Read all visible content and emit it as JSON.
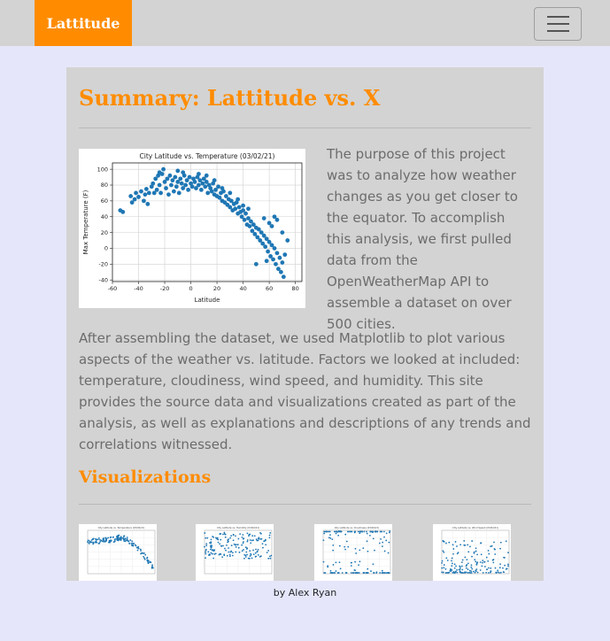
{
  "navbar": {
    "brand": "Lattitude",
    "toggler_icon": "hamburger-icon"
  },
  "summary": {
    "title": "Summary: Lattitude vs. X",
    "intro": "The purpose of this project was to analyze how weather changes as you get closer to the equator. To accomplish this analysis, we first pulled data from the OpenWeatherMap API to assemble a dataset on over 500 cities.",
    "body": "After assembling the dataset, we used Matplotlib to plot various aspects of the weather vs. latitude. Factors we looked at included: temperature, cloudiness, wind speed, and humidity. This site provides the source data and visualizations created as part of the analysis, as well as explanations and descriptions of any trends and correlations witnessed."
  },
  "visualizations": {
    "title": "Visualizations"
  },
  "footer": {
    "text": "by Alex Ryan"
  },
  "colors": {
    "brand": "#ff8c00",
    "navbar_bg": "#d3d3d3",
    "page_bg": "#e6e6fa",
    "card_bg": "#d3d3d3",
    "point": "#1f77b4"
  },
  "chart_data": {
    "type": "scatter",
    "title": "City Latitude vs. Temperature (03/02/21)",
    "xlabel": "Latitude",
    "ylabel": "Max Temperature (F)",
    "xlim": [
      -60,
      85
    ],
    "ylim": [
      -42,
      108
    ],
    "xticks": [
      -60,
      -40,
      -20,
      0,
      20,
      40,
      60,
      80
    ],
    "yticks": [
      -40,
      -20,
      0,
      20,
      40,
      60,
      80,
      100
    ],
    "grid": true,
    "points": [
      [
        -54,
        48
      ],
      [
        -52,
        46
      ],
      [
        -46,
        66
      ],
      [
        -45,
        58
      ],
      [
        -43,
        62
      ],
      [
        -42,
        70
      ],
      [
        -40,
        65
      ],
      [
        -38,
        72
      ],
      [
        -36,
        60
      ],
      [
        -35,
        68
      ],
      [
        -34,
        75
      ],
      [
        -33,
        56
      ],
      [
        -32,
        70
      ],
      [
        -30,
        78
      ],
      [
        -29,
        82
      ],
      [
        -28,
        70
      ],
      [
        -27,
        88
      ],
      [
        -26,
        74
      ],
      [
        -25,
        92
      ],
      [
        -24,
        80
      ],
      [
        -23,
        70
      ],
      [
        -22,
        94
      ],
      [
        -21,
        100
      ],
      [
        -20,
        84
      ],
      [
        -19,
        76
      ],
      [
        -18,
        88
      ],
      [
        -17,
        68
      ],
      [
        -16,
        92
      ],
      [
        -15,
        80
      ],
      [
        -14,
        86
      ],
      [
        -13,
        72
      ],
      [
        -12,
        90
      ],
      [
        -11,
        78
      ],
      [
        -10,
        84
      ],
      [
        -9,
        70
      ],
      [
        -8,
        88
      ],
      [
        -7,
        82
      ],
      [
        -6,
        76
      ],
      [
        -5,
        92
      ],
      [
        -4,
        80
      ],
      [
        -3,
        86
      ],
      [
        -2,
        74
      ],
      [
        -1,
        90
      ],
      [
        0,
        82
      ],
      [
        1,
        78
      ],
      [
        2,
        88
      ],
      [
        3,
        84
      ],
      [
        4,
        76
      ],
      [
        5,
        90
      ],
      [
        6,
        80
      ],
      [
        7,
        86
      ],
      [
        8,
        74
      ],
      [
        9,
        82
      ],
      [
        10,
        88
      ],
      [
        11,
        78
      ],
      [
        12,
        84
      ],
      [
        13,
        70
      ],
      [
        14,
        80
      ],
      [
        15,
        76
      ],
      [
        16,
        72
      ],
      [
        17,
        82
      ],
      [
        18,
        68
      ],
      [
        19,
        74
      ],
      [
        20,
        66
      ],
      [
        21,
        78
      ],
      [
        22,
        64
      ],
      [
        23,
        70
      ],
      [
        24,
        60
      ],
      [
        25,
        72
      ],
      [
        26,
        58
      ],
      [
        27,
        66
      ],
      [
        28,
        55
      ],
      [
        29,
        62
      ],
      [
        30,
        52
      ],
      [
        31,
        60
      ],
      [
        32,
        48
      ],
      [
        33,
        56
      ],
      [
        34,
        50
      ],
      [
        35,
        58
      ],
      [
        36,
        44
      ],
      [
        37,
        52
      ],
      [
        38,
        46
      ],
      [
        39,
        40
      ],
      [
        40,
        48
      ],
      [
        41,
        36
      ],
      [
        42,
        44
      ],
      [
        43,
        30
      ],
      [
        44,
        38
      ],
      [
        45,
        28
      ],
      [
        46,
        34
      ],
      [
        47,
        22
      ],
      [
        48,
        30
      ],
      [
        49,
        18
      ],
      [
        50,
        26
      ],
      [
        51,
        14
      ],
      [
        52,
        24
      ],
      [
        53,
        10
      ],
      [
        54,
        20
      ],
      [
        55,
        6
      ],
      [
        56,
        16
      ],
      [
        57,
        2
      ],
      [
        58,
        12
      ],
      [
        59,
        -4
      ],
      [
        60,
        8
      ],
      [
        61,
        -10
      ],
      [
        62,
        4
      ],
      [
        63,
        -14
      ],
      [
        64,
        0
      ],
      [
        65,
        -20
      ],
      [
        66,
        -6
      ],
      [
        67,
        -26
      ],
      [
        68,
        -12
      ],
      [
        69,
        -30
      ],
      [
        70,
        -18
      ],
      [
        71,
        -36
      ],
      [
        72,
        -8
      ],
      [
        50,
        -20
      ],
      [
        58,
        -16
      ],
      [
        62,
        28
      ],
      [
        66,
        36
      ],
      [
        70,
        20
      ],
      [
        74,
        10
      ],
      [
        64,
        40
      ],
      [
        60,
        32
      ],
      [
        56,
        38
      ],
      [
        44,
        50
      ],
      [
        40,
        54
      ],
      [
        36,
        62
      ],
      [
        30,
        70
      ],
      [
        24,
        76
      ],
      [
        18,
        86
      ],
      [
        12,
        92
      ],
      [
        6,
        94
      ],
      [
        -6,
        96
      ],
      [
        -10,
        98
      ],
      [
        -24,
        96
      ]
    ]
  },
  "thumbnails": [
    {
      "name": "latitude-vs-temperature-thumbnail",
      "title": "City Latitude vs. Temperature (03/02/21)",
      "kind": "temperature"
    },
    {
      "name": "latitude-vs-humidity-thumbnail",
      "title": "City Latitude vs. Humidity (03/02/21)",
      "kind": "humidity"
    },
    {
      "name": "latitude-vs-cloudiness-thumbnail",
      "title": "City Latitude vs. Cloudiness (03/02/21)",
      "kind": "cloudiness"
    },
    {
      "name": "latitude-vs-wind-speed-thumbnail",
      "title": "City Latitude vs. Wind Speed (03/02/21)",
      "kind": "wind"
    }
  ]
}
